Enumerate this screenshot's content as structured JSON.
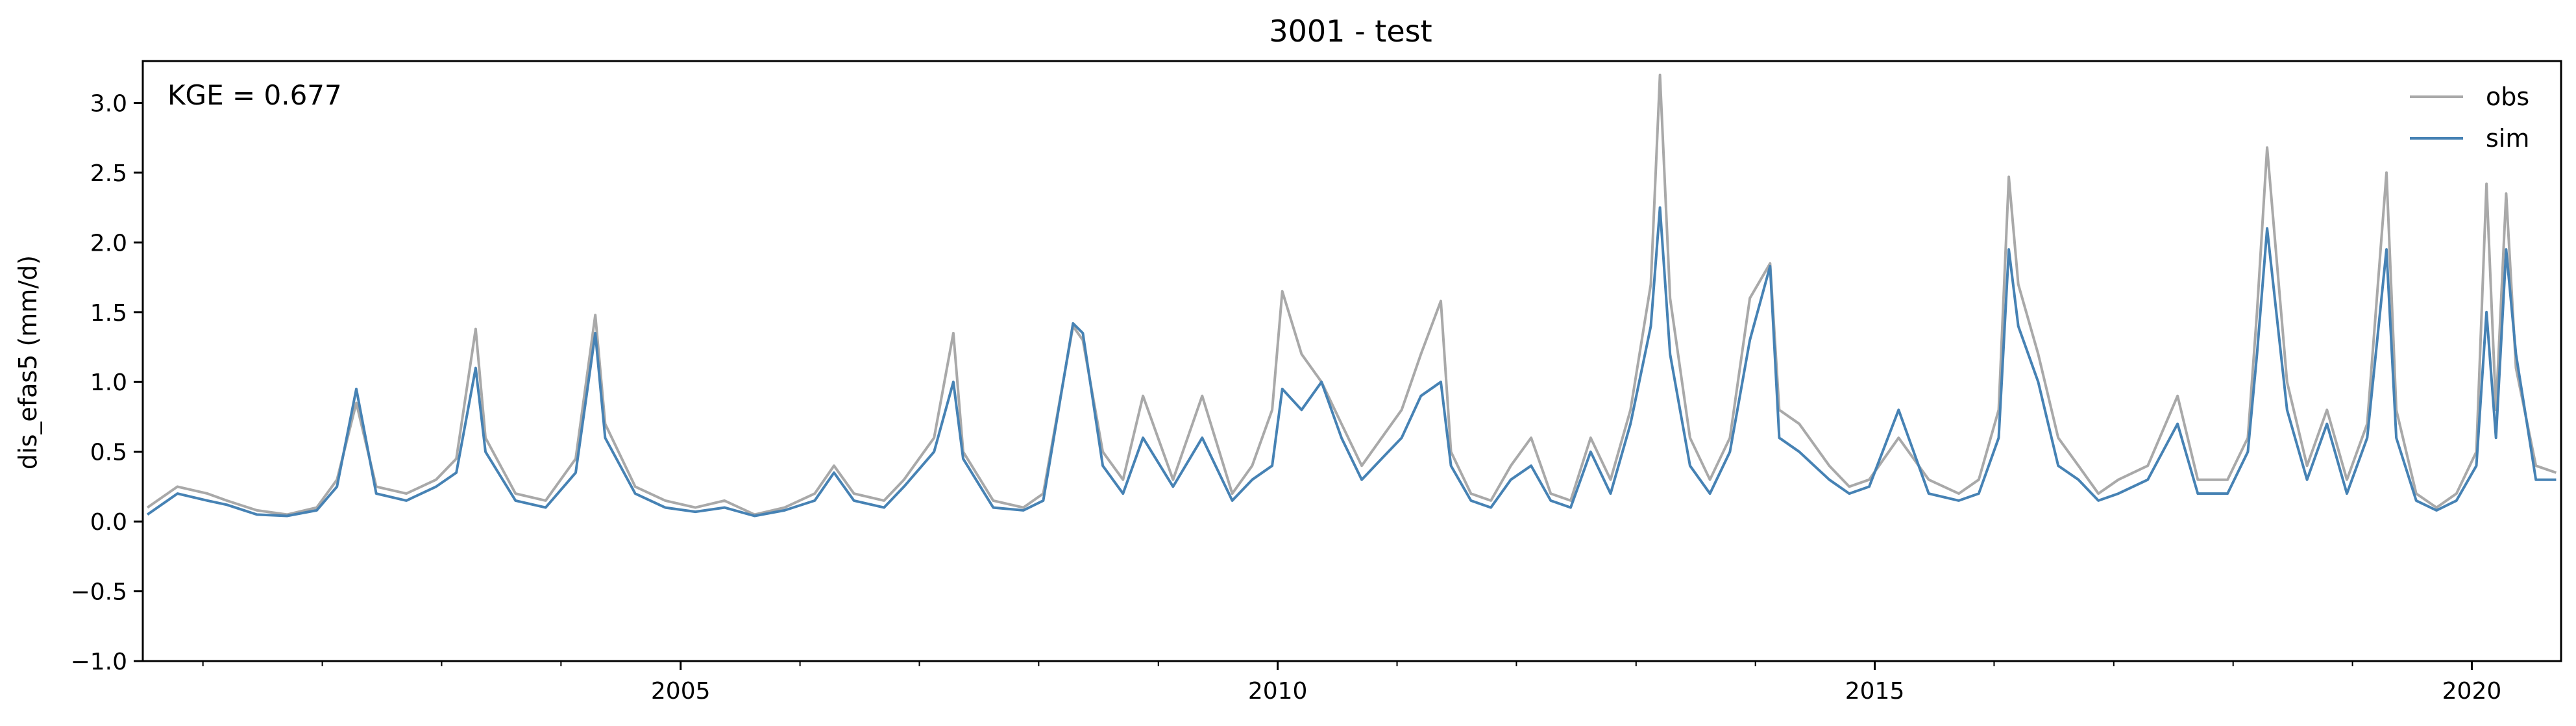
{
  "chart_data": {
    "type": "line",
    "title": "3001 - test",
    "xlabel": "",
    "ylabel": "dis_efas5 (mm/d)",
    "xlim": [
      "2000-07-01",
      "2020-09-30"
    ],
    "ylim": [
      -1.0,
      3.3
    ],
    "yticks": [
      -1.0,
      -0.5,
      0.0,
      0.5,
      1.0,
      1.5,
      2.0,
      2.5,
      3.0
    ],
    "ytick_labels": [
      "−1.0",
      "−0.5",
      "0.0",
      "0.5",
      "1.0",
      "1.5",
      "2.0",
      "2.5",
      "3.0"
    ],
    "xticks": [
      "2005-01-01",
      "2010-01-01",
      "2015-01-01",
      "2020-01-01"
    ],
    "xtick_labels": [
      "2005",
      "2010",
      "2015",
      "2020"
    ],
    "grid": false,
    "legend_placement": "top-right",
    "annotation": "KGE = 0.677",
    "colors": {
      "obs": "#a9a9a9",
      "sim": "#4682b4"
    },
    "series": [
      {
        "name": "obs",
        "x": [
          "2000-07",
          "2000-10",
          "2001-01",
          "2001-03",
          "2001-06",
          "2001-09",
          "2001-12",
          "2002-02",
          "2002-04",
          "2002-06",
          "2002-09",
          "2002-12",
          "2003-02",
          "2003-04",
          "2003-05",
          "2003-08",
          "2003-11",
          "2004-02",
          "2004-04",
          "2004-05",
          "2004-08",
          "2004-11",
          "2005-02",
          "2005-05",
          "2005-08",
          "2005-11",
          "2006-02",
          "2006-04",
          "2006-06",
          "2006-09",
          "2006-11",
          "2007-02",
          "2007-04",
          "2007-05",
          "2007-08",
          "2007-11",
          "2008-01",
          "2008-04",
          "2008-05",
          "2008-07",
          "2008-09",
          "2008-11",
          "2009-02",
          "2009-05",
          "2009-08",
          "2009-10",
          "2009-12",
          "2010-01",
          "2010-03",
          "2010-05",
          "2010-07",
          "2010-09",
          "2010-11",
          "2011-01",
          "2011-03",
          "2011-05",
          "2011-06",
          "2011-08",
          "2011-10",
          "2011-12",
          "2012-02",
          "2012-04",
          "2012-06",
          "2012-08",
          "2012-10",
          "2012-12",
          "2013-02",
          "2013-03",
          "2013-04",
          "2013-06",
          "2013-08",
          "2013-10",
          "2013-12",
          "2014-02",
          "2014-03",
          "2014-05",
          "2014-08",
          "2014-10",
          "2014-12",
          "2015-03",
          "2015-06",
          "2015-09",
          "2015-11",
          "2016-01",
          "2016-02",
          "2016-03",
          "2016-05",
          "2016-07",
          "2016-09",
          "2016-11",
          "2017-01",
          "2017-04",
          "2017-07",
          "2017-09",
          "2017-12",
          "2018-02",
          "2018-03",
          "2018-04",
          "2018-06",
          "2018-08",
          "2018-10",
          "2018-12",
          "2019-02",
          "2019-04",
          "2019-05",
          "2019-07",
          "2019-09",
          "2019-11",
          "2020-01",
          "2020-02",
          "2020-03",
          "2020-04",
          "2020-05",
          "2020-07",
          "2020-09"
        ],
        "y": [
          0.1,
          0.25,
          0.2,
          0.15,
          0.08,
          0.05,
          0.1,
          0.3,
          0.85,
          0.25,
          0.2,
          0.3,
          0.45,
          1.38,
          0.6,
          0.2,
          0.15,
          0.45,
          1.48,
          0.7,
          0.25,
          0.15,
          0.1,
          0.15,
          0.05,
          0.1,
          0.2,
          0.4,
          0.2,
          0.15,
          0.3,
          0.6,
          1.35,
          0.5,
          0.15,
          0.1,
          0.2,
          1.4,
          1.3,
          0.5,
          0.3,
          0.9,
          0.3,
          0.9,
          0.2,
          0.4,
          0.8,
          1.65,
          1.2,
          1.0,
          0.7,
          0.4,
          0.6,
          0.8,
          1.2,
          1.58,
          0.5,
          0.2,
          0.15,
          0.4,
          0.6,
          0.2,
          0.15,
          0.6,
          0.3,
          0.8,
          1.7,
          3.2,
          1.6,
          0.6,
          0.3,
          0.6,
          1.6,
          1.85,
          0.8,
          0.7,
          0.4,
          0.25,
          0.3,
          0.6,
          0.3,
          0.2,
          0.3,
          0.8,
          2.47,
          1.7,
          1.2,
          0.6,
          0.4,
          0.2,
          0.3,
          0.4,
          0.9,
          0.3,
          0.3,
          0.6,
          1.5,
          2.68,
          1.0,
          0.4,
          0.8,
          0.3,
          0.7,
          2.5,
          0.8,
          0.2,
          0.1,
          0.2,
          0.5,
          2.42,
          0.8,
          2.35,
          1.1,
          0.4,
          0.35
        ]
      },
      {
        "name": "sim",
        "x": [
          "2000-07",
          "2000-10",
          "2001-01",
          "2001-03",
          "2001-06",
          "2001-09",
          "2001-12",
          "2002-02",
          "2002-04",
          "2002-06",
          "2002-09",
          "2002-12",
          "2003-02",
          "2003-04",
          "2003-05",
          "2003-08",
          "2003-11",
          "2004-02",
          "2004-04",
          "2004-05",
          "2004-08",
          "2004-11",
          "2005-02",
          "2005-05",
          "2005-08",
          "2005-11",
          "2006-02",
          "2006-04",
          "2006-06",
          "2006-09",
          "2006-11",
          "2007-02",
          "2007-04",
          "2007-05",
          "2007-08",
          "2007-11",
          "2008-01",
          "2008-04",
          "2008-05",
          "2008-07",
          "2008-09",
          "2008-11",
          "2009-02",
          "2009-05",
          "2009-08",
          "2009-10",
          "2009-12",
          "2010-01",
          "2010-03",
          "2010-05",
          "2010-07",
          "2010-09",
          "2010-11",
          "2011-01",
          "2011-03",
          "2011-05",
          "2011-06",
          "2011-08",
          "2011-10",
          "2011-12",
          "2012-02",
          "2012-04",
          "2012-06",
          "2012-08",
          "2012-10",
          "2012-12",
          "2013-02",
          "2013-03",
          "2013-04",
          "2013-06",
          "2013-08",
          "2013-10",
          "2013-12",
          "2014-02",
          "2014-03",
          "2014-05",
          "2014-08",
          "2014-10",
          "2014-12",
          "2015-03",
          "2015-06",
          "2015-09",
          "2015-11",
          "2016-01",
          "2016-02",
          "2016-03",
          "2016-05",
          "2016-07",
          "2016-09",
          "2016-11",
          "2017-01",
          "2017-04",
          "2017-07",
          "2017-09",
          "2017-12",
          "2018-02",
          "2018-03",
          "2018-04",
          "2018-06",
          "2018-08",
          "2018-10",
          "2018-12",
          "2019-02",
          "2019-04",
          "2019-05",
          "2019-07",
          "2019-09",
          "2019-11",
          "2020-01",
          "2020-02",
          "2020-03",
          "2020-04",
          "2020-05",
          "2020-07",
          "2020-09"
        ],
        "y": [
          0.05,
          0.2,
          0.15,
          0.12,
          0.05,
          0.04,
          0.08,
          0.25,
          0.95,
          0.2,
          0.15,
          0.25,
          0.35,
          1.1,
          0.5,
          0.15,
          0.1,
          0.35,
          1.35,
          0.6,
          0.2,
          0.1,
          0.07,
          0.1,
          0.04,
          0.08,
          0.15,
          0.35,
          0.15,
          0.1,
          0.25,
          0.5,
          1.0,
          0.45,
          0.1,
          0.08,
          0.15,
          1.42,
          1.35,
          0.4,
          0.2,
          0.6,
          0.25,
          0.6,
          0.15,
          0.3,
          0.4,
          0.95,
          0.8,
          1.0,
          0.6,
          0.3,
          0.45,
          0.6,
          0.9,
          1.0,
          0.4,
          0.15,
          0.1,
          0.3,
          0.4,
          0.15,
          0.1,
          0.5,
          0.2,
          0.7,
          1.4,
          2.25,
          1.2,
          0.4,
          0.2,
          0.5,
          1.3,
          1.83,
          0.6,
          0.5,
          0.3,
          0.2,
          0.25,
          0.8,
          0.2,
          0.15,
          0.2,
          0.6,
          1.95,
          1.4,
          1.0,
          0.4,
          0.3,
          0.15,
          0.2,
          0.3,
          0.7,
          0.2,
          0.2,
          0.5,
          1.2,
          2.1,
          0.8,
          0.3,
          0.7,
          0.2,
          0.6,
          1.95,
          0.6,
          0.15,
          0.08,
          0.15,
          0.4,
          1.5,
          0.6,
          1.95,
          1.2,
          0.3,
          0.3
        ]
      }
    ]
  }
}
